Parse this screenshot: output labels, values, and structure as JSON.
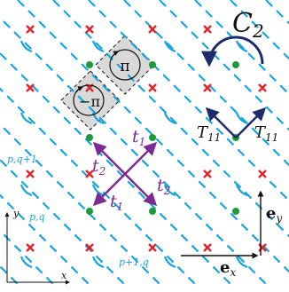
{
  "colors": {
    "dash": "#1aa3dc",
    "cross": "#e0242c",
    "dot": "#1f9a3b",
    "hop": "#7b2c8e",
    "arrow": "#1f2c6b",
    "cell_label": "#1aa3dc",
    "shade": "#d9d9d9"
  },
  "labels": {
    "c2": "C",
    "c2_sub": "2",
    "pi_upper": "π",
    "pi_lower": "−π",
    "t1_top": "t",
    "t1_top_sub": "1",
    "t2_left": "t",
    "t2_left_sub": "2",
    "t1_bottom": "t",
    "t1_bottom_sub": "1",
    "t2_right": "t",
    "t2_right_sub": "2",
    "T11_left": "T",
    "T11_left_sub": "11",
    "T11_right": "T",
    "T11_right_sub": "11",
    "pq1": "p,q+1",
    "pq": "p,q",
    "p1q": "p+1,q",
    "ex": "e",
    "ex_sub": "x",
    "ey": "e",
    "ey_sub": "y",
    "axis_x": "x",
    "axis_y": "y"
  }
}
